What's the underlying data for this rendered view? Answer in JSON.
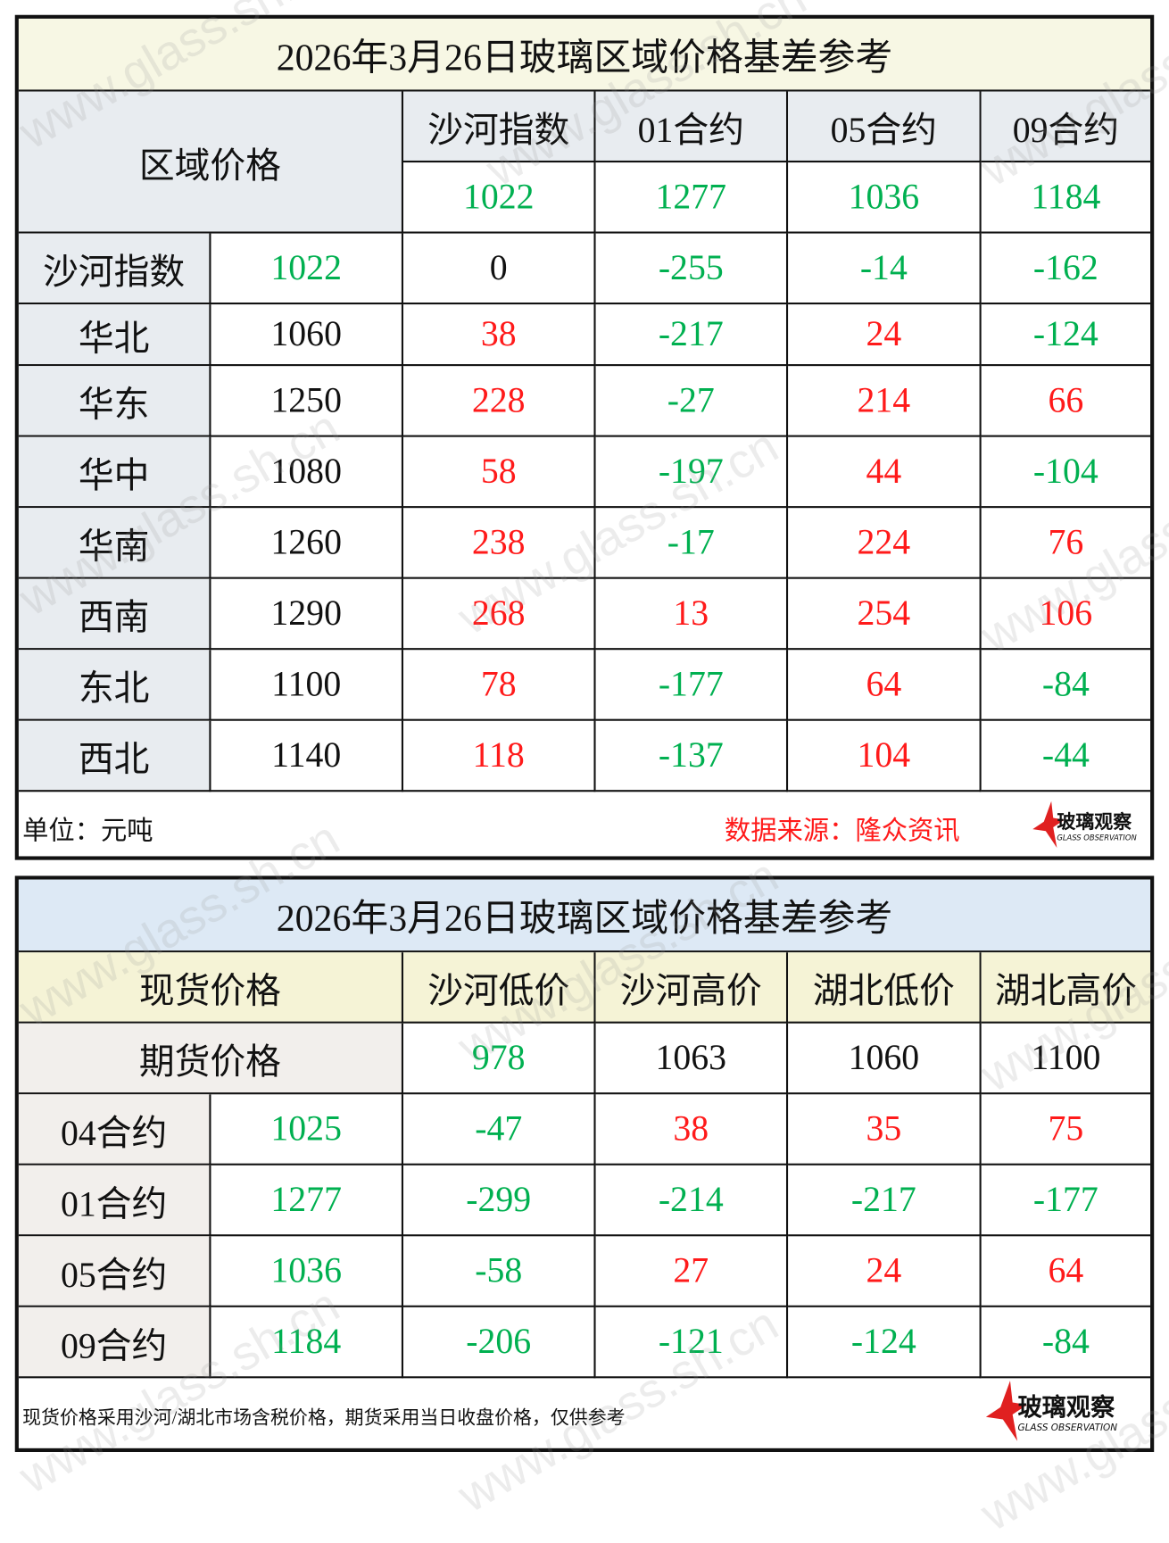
{
  "colors": {
    "red": "#ff1a1a",
    "green": "#00b050",
    "title1_bg": "#f7f7e4",
    "title2_bg": "#dde9f5",
    "header2_bg": "#f5f3d6",
    "side1_bg": "#e8ecf0",
    "side2_bg": "#f2efec"
  },
  "watermark": "www.glass.sh.cn",
  "table1": {
    "title": "2026年3月26日玻璃区域价格基差参考",
    "corner": "区域价格",
    "columns": [
      "沙河指数",
      "01合约",
      "05合约",
      "09合约"
    ],
    "column_values": [
      "1022",
      "1277",
      "1036",
      "1184"
    ],
    "rows": [
      {
        "region": "沙河指数",
        "price": {
          "v": "1022",
          "c": "green"
        },
        "cells": [
          {
            "v": "0",
            "c": "black"
          },
          {
            "v": "-255",
            "c": "green"
          },
          {
            "v": "-14",
            "c": "green"
          },
          {
            "v": "-162",
            "c": "green"
          }
        ]
      },
      {
        "region": "华北",
        "price": {
          "v": "1060",
          "c": "black"
        },
        "cells": [
          {
            "v": "38",
            "c": "red"
          },
          {
            "v": "-217",
            "c": "green"
          },
          {
            "v": "24",
            "c": "red"
          },
          {
            "v": "-124",
            "c": "green"
          }
        ]
      },
      {
        "region": "华东",
        "price": {
          "v": "1250",
          "c": "black"
        },
        "cells": [
          {
            "v": "228",
            "c": "red"
          },
          {
            "v": "-27",
            "c": "green"
          },
          {
            "v": "214",
            "c": "red"
          },
          {
            "v": "66",
            "c": "red"
          }
        ]
      },
      {
        "region": "华中",
        "price": {
          "v": "1080",
          "c": "black"
        },
        "cells": [
          {
            "v": "58",
            "c": "red"
          },
          {
            "v": "-197",
            "c": "green"
          },
          {
            "v": "44",
            "c": "red"
          },
          {
            "v": "-104",
            "c": "green"
          }
        ]
      },
      {
        "region": "华南",
        "price": {
          "v": "1260",
          "c": "black"
        },
        "cells": [
          {
            "v": "238",
            "c": "red"
          },
          {
            "v": "-17",
            "c": "green"
          },
          {
            "v": "224",
            "c": "red"
          },
          {
            "v": "76",
            "c": "red"
          }
        ]
      },
      {
        "region": "西南",
        "price": {
          "v": "1290",
          "c": "black"
        },
        "cells": [
          {
            "v": "268",
            "c": "red"
          },
          {
            "v": "13",
            "c": "red"
          },
          {
            "v": "254",
            "c": "red"
          },
          {
            "v": "106",
            "c": "red"
          }
        ]
      },
      {
        "region": "东北",
        "price": {
          "v": "1100",
          "c": "black"
        },
        "cells": [
          {
            "v": "78",
            "c": "red"
          },
          {
            "v": "-177",
            "c": "green"
          },
          {
            "v": "64",
            "c": "red"
          },
          {
            "v": "-84",
            "c": "green"
          }
        ]
      },
      {
        "region": "西北",
        "price": {
          "v": "1140",
          "c": "black"
        },
        "cells": [
          {
            "v": "118",
            "c": "red"
          },
          {
            "v": "-137",
            "c": "green"
          },
          {
            "v": "104",
            "c": "red"
          },
          {
            "v": "-44",
            "c": "green"
          }
        ]
      }
    ],
    "unit": "单位：元吨",
    "source": "数据来源：隆众资讯",
    "logo_cn": "玻璃观察",
    "logo_en": "GLASS OBSERVATION"
  },
  "table2": {
    "title": "2026年3月26日玻璃区域价格基差参考",
    "corner": "现货价格",
    "columns": [
      "沙河低价",
      "沙河高价",
      "湖北低价",
      "湖北高价"
    ],
    "futures_label": "期货价格",
    "column_values": [
      {
        "v": "978",
        "c": "green"
      },
      {
        "v": "1063",
        "c": "black"
      },
      {
        "v": "1060",
        "c": "black"
      },
      {
        "v": "1100",
        "c": "black"
      }
    ],
    "rows": [
      {
        "region": "04合约",
        "price": {
          "v": "1025",
          "c": "green"
        },
        "cells": [
          {
            "v": "-47",
            "c": "green"
          },
          {
            "v": "38",
            "c": "red"
          },
          {
            "v": "35",
            "c": "red"
          },
          {
            "v": "75",
            "c": "red"
          }
        ]
      },
      {
        "region": "01合约",
        "price": {
          "v": "1277",
          "c": "green"
        },
        "cells": [
          {
            "v": "-299",
            "c": "green"
          },
          {
            "v": "-214",
            "c": "green"
          },
          {
            "v": "-217",
            "c": "green"
          },
          {
            "v": "-177",
            "c": "green"
          }
        ]
      },
      {
        "region": "05合约",
        "price": {
          "v": "1036",
          "c": "green"
        },
        "cells": [
          {
            "v": "-58",
            "c": "green"
          },
          {
            "v": "27",
            "c": "red"
          },
          {
            "v": "24",
            "c": "red"
          },
          {
            "v": "64",
            "c": "red"
          }
        ]
      },
      {
        "region": "09合约",
        "price": {
          "v": "1184",
          "c": "green"
        },
        "cells": [
          {
            "v": "-206",
            "c": "green"
          },
          {
            "v": "-121",
            "c": "green"
          },
          {
            "v": "-124",
            "c": "green"
          },
          {
            "v": "-84",
            "c": "green"
          }
        ]
      }
    ],
    "note": "现货价格采用沙河/湖北市场含税价格，期货采用当日收盘价格，仅供参考",
    "logo_cn": "玻璃观察",
    "logo_en": "GLASS OBSERVATION"
  }
}
